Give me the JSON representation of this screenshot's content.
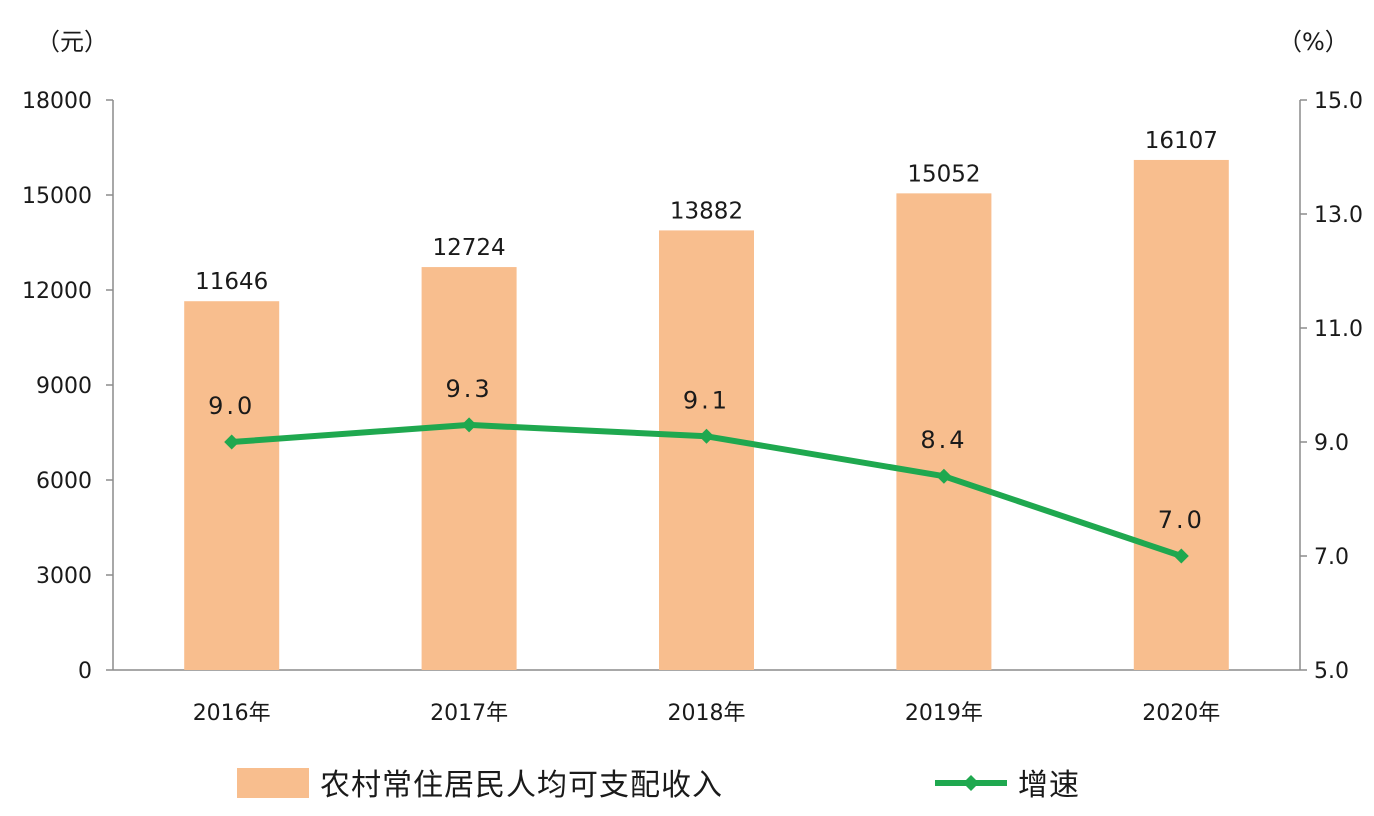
{
  "chart_data": {
    "type": "bar",
    "title": "",
    "xlabel": "",
    "categories": [
      "2016年",
      "2017年",
      "2018年",
      "2019年",
      "2020年"
    ],
    "series": [
      {
        "name": "农村常住居民人均可支配收入",
        "type": "bar",
        "axis": "left",
        "values": [
          11646,
          12724,
          13882,
          15052,
          16107
        ],
        "labels": [
          "11646",
          "12724",
          "13882",
          "15052",
          "16107"
        ],
        "color": "#f8be8e"
      },
      {
        "name": "增速",
        "type": "line",
        "axis": "right",
        "values": [
          9.0,
          9.3,
          9.1,
          8.4,
          7.0
        ],
        "labels": [
          "9.0",
          "9.3",
          "9.1",
          "8.4",
          "7.0"
        ],
        "color": "#1fa84f"
      }
    ],
    "y_left": {
      "unit": "（元）",
      "min": 0,
      "max": 18000,
      "ticks": [
        "0",
        "3000",
        "6000",
        "9000",
        "12000",
        "15000",
        "18000"
      ],
      "tick_values": [
        0,
        3000,
        6000,
        9000,
        12000,
        15000,
        18000
      ]
    },
    "y_right": {
      "unit": "（%）",
      "min": 5.0,
      "max": 15.0,
      "ticks": [
        "5.0",
        "7.0",
        "9.0",
        "11.0",
        "13.0",
        "15.0"
      ],
      "tick_values": [
        5,
        7,
        9,
        11,
        13,
        15
      ]
    },
    "grid": false,
    "legend_position": "bottom"
  }
}
